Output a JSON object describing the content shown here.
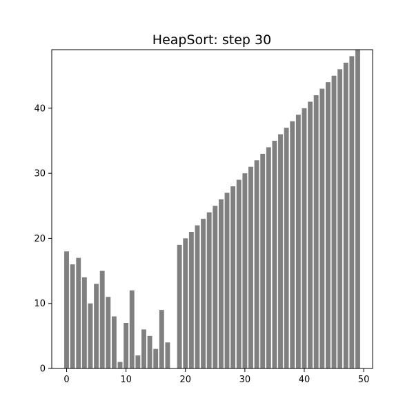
{
  "chart_data": {
    "type": "bar",
    "title": "HeapSort: step 30",
    "xlabel": "",
    "ylabel": "",
    "x": [
      0,
      1,
      2,
      3,
      4,
      5,
      6,
      7,
      8,
      9,
      10,
      11,
      12,
      13,
      14,
      15,
      16,
      17,
      18,
      19,
      20,
      21,
      22,
      23,
      24,
      25,
      26,
      27,
      28,
      29,
      30,
      31,
      32,
      33,
      34,
      35,
      36,
      37,
      38,
      39,
      40,
      41,
      42,
      43,
      44,
      45,
      46,
      47,
      48,
      49
    ],
    "values": [
      18,
      16,
      17,
      14,
      10,
      13,
      15,
      11,
      8,
      1,
      7,
      12,
      2,
      6,
      5,
      3,
      9,
      4,
      0,
      19,
      20,
      21,
      22,
      23,
      24,
      25,
      26,
      27,
      28,
      29,
      30,
      31,
      32,
      33,
      34,
      35,
      36,
      37,
      38,
      39,
      40,
      41,
      42,
      43,
      44,
      45,
      46,
      47,
      48,
      49
    ],
    "xlim": [
      -2.5,
      51.5
    ],
    "ylim": [
      0,
      49
    ],
    "xticks": [
      "0",
      "10",
      "20",
      "30",
      "40",
      "50"
    ],
    "yticks": [
      "0",
      "10",
      "20",
      "30",
      "40"
    ],
    "bar_color": "#808080",
    "grid": false,
    "legend": "none"
  }
}
